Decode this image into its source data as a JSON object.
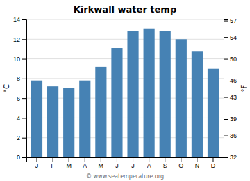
{
  "chart_data": {
    "type": "bar",
    "title": "Kirkwall water temp",
    "categories": [
      "J",
      "F",
      "M",
      "A",
      "M",
      "J",
      "J",
      "A",
      "S",
      "O",
      "N",
      "D"
    ],
    "values": [
      7.8,
      7.2,
      7.0,
      7.8,
      9.2,
      11.1,
      12.8,
      13.1,
      12.8,
      12.0,
      10.8,
      9.0
    ],
    "ylim": [
      0,
      14
    ],
    "yticks": [
      0,
      2,
      4,
      6,
      8,
      10,
      12,
      14
    ],
    "y2lim": [
      32,
      57.2
    ],
    "y2ticks": [
      32,
      36,
      39,
      43,
      46,
      50,
      54,
      57
    ],
    "ylabel": "°C",
    "y2label": "°F",
    "annotations": [
      "© www.seatemperature.org"
    ],
    "grid": true
  }
}
